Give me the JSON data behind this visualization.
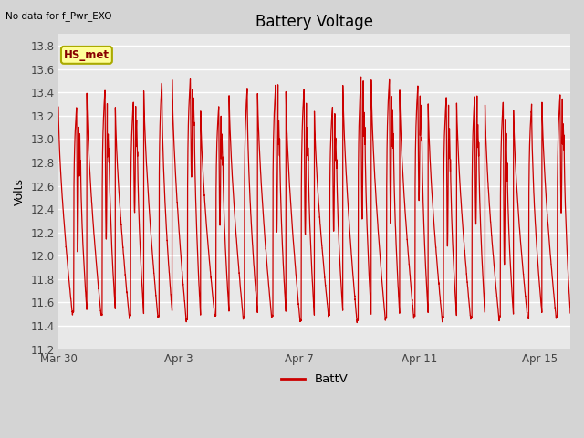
{
  "title": "Battery Voltage",
  "subtitle": "No data for f_Pwr_EXO",
  "ylabel": "Volts",
  "legend_label": "BattV",
  "line_color": "#cc0000",
  "fig_bg_color": "#d4d4d4",
  "plot_bg_color": "#e8e8e8",
  "grid_color": "#ffffff",
  "ylim": [
    11.2,
    13.9
  ],
  "xlim_days": [
    0,
    17.0
  ],
  "yticks": [
    11.2,
    11.4,
    11.6,
    11.8,
    12.0,
    12.2,
    12.4,
    12.6,
    12.8,
    13.0,
    13.2,
    13.4,
    13.6,
    13.8
  ],
  "xtick_labels": [
    "Mar 30",
    "Apr 3",
    "Apr 7",
    "Apr 11",
    "Apr 15"
  ],
  "xtick_positions": [
    0,
    4,
    8,
    12,
    16
  ],
  "box_label": "HS_met",
  "box_bg": "#ffff99",
  "box_edge": "#aaaa00",
  "box_text_color": "#880000"
}
